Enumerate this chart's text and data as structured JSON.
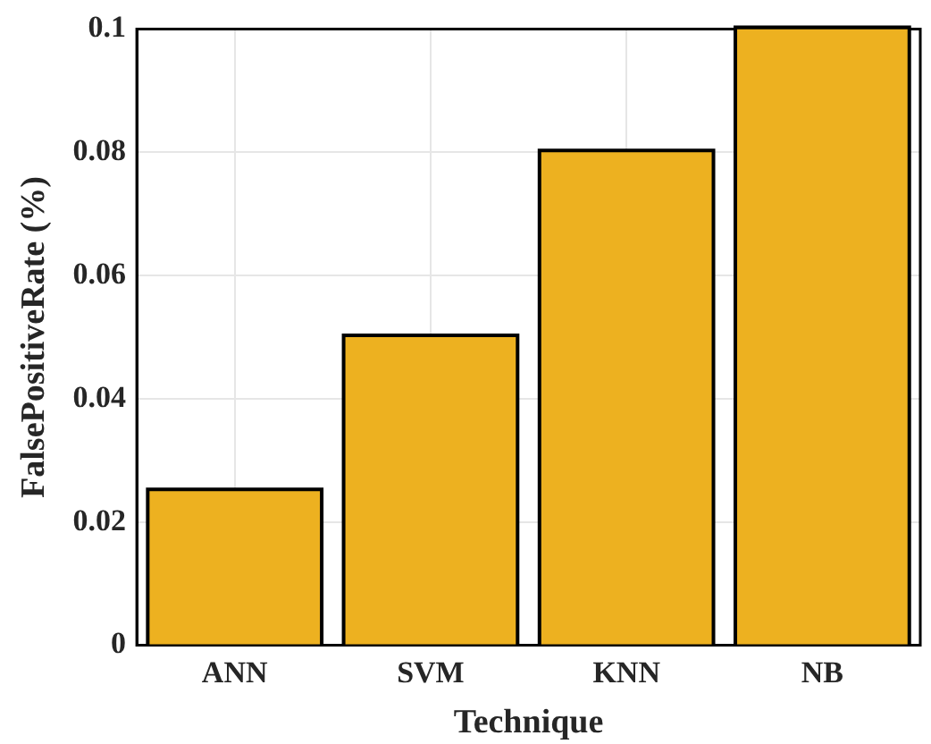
{
  "chart_data": {
    "type": "bar",
    "xlabel": "Technique",
    "ylabel": "FalsePositiveRate (%)",
    "categories": [
      "ANN",
      "SVM",
      "KNN",
      "NB"
    ],
    "values": [
      0.025,
      0.05,
      0.08,
      0.1
    ],
    "color": "#edb120",
    "ylim": [
      0,
      0.1
    ],
    "yticks": [
      0,
      0.02,
      0.04,
      0.06,
      0.08,
      0.1
    ],
    "grid": true
  }
}
